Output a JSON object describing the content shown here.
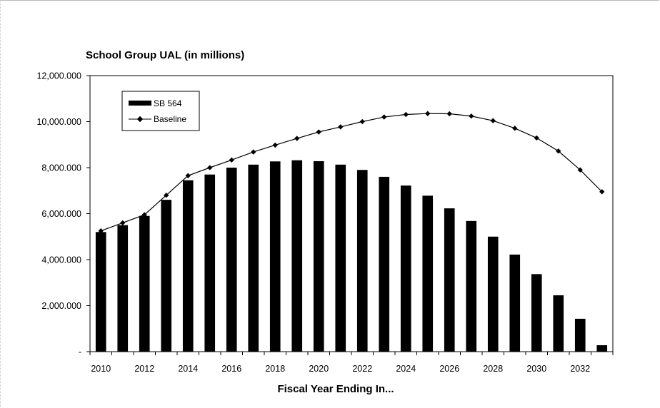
{
  "chart_data": {
    "type": "bar",
    "title": "School Group UAL (in millions)",
    "xlabel": "Fiscal Year Ending In...",
    "ylabel": "",
    "ylim": [
      0,
      12000
    ],
    "y_ticks": [
      0,
      2000,
      4000,
      6000,
      8000,
      10000,
      12000
    ],
    "y_tick_labels": [
      "-",
      "2,000.000",
      "4,000.000",
      "6,000.000",
      "8,000.000",
      "10,000.000",
      "12,000.000"
    ],
    "x_tick_labels": [
      "2010",
      "2012",
      "2014",
      "2016",
      "2018",
      "2020",
      "2022",
      "2024",
      "2026",
      "2028",
      "2030",
      "2032"
    ],
    "categories": [
      2010,
      2011,
      2012,
      2013,
      2014,
      2015,
      2016,
      2017,
      2018,
      2019,
      2020,
      2021,
      2022,
      2023,
      2024,
      2025,
      2026,
      2027,
      2028,
      2029,
      2030,
      2031,
      2032,
      2033
    ],
    "series": [
      {
        "name": "SB 564",
        "type": "bar",
        "color": "#000000",
        "values": [
          5200,
          5500,
          5900,
          6600,
          7450,
          7700,
          8000,
          8130,
          8270,
          8320,
          8280,
          8130,
          7900,
          7600,
          7220,
          6780,
          6230,
          5680,
          5000,
          4220,
          3370,
          2450,
          1430,
          280
        ]
      },
      {
        "name": "Baseline",
        "type": "line",
        "color": "#000000",
        "values": [
          5250,
          5600,
          5950,
          6800,
          7650,
          8000,
          8330,
          8680,
          8980,
          9270,
          9550,
          9770,
          10000,
          10200,
          10310,
          10350,
          10340,
          10240,
          10040,
          9710,
          9290,
          8720,
          7900,
          6950
        ]
      }
    ],
    "legend": {
      "position": "top-left"
    },
    "grid": false
  }
}
